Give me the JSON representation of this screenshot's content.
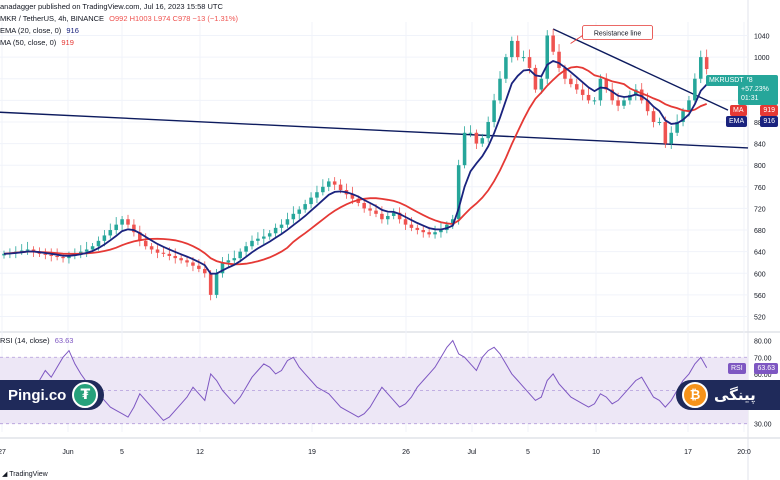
{
  "header": {
    "published": "anadagger published on TradingView.com, Jul 16, 2023 15:58 UTC",
    "symbol": "MKR / TetherUS, 4h, BINANCE",
    "ohlc": "O992 H1003 L974 C978 −13 (−1.31%)",
    "ema_label": "EMA (20, close, 0)",
    "ema_value": "916",
    "sma_label": "MA (50, close, 0)",
    "sma_value": "919",
    "rsi_label": "RSI (14, close)",
    "rsi_value": "63.63"
  },
  "badges": {
    "ticker": "MKRUSDT",
    "last_price": "978",
    "change": "+57.23%",
    "countdown": "01:31",
    "ma_tag": "MA",
    "ma_value": "919",
    "ema_tag": "EMA",
    "ema_value": "916",
    "rsi_tag": "RSI",
    "rsi_value": "63.63"
  },
  "annotation": "Resistance line",
  "branding": {
    "left": "Pingi.co",
    "right": "پینگی",
    "tether_symbol": "₮",
    "btc_symbol": "₿",
    "tradingview": "TradingView"
  },
  "colors": {
    "up": "#26a69a",
    "down": "#ef5350",
    "ema": "#1a237e",
    "sma": "#e53935",
    "rsi": "#7e57c2",
    "trendline": "#0d1b5e",
    "rsi_band": "#ede7f6",
    "badge_green": "#26a69a",
    "badge_blue": "#1a237e",
    "badge_red": "#e53935",
    "badge_purple": "#7e57c2"
  },
  "chart_data": [
    {
      "type": "candlestick",
      "title": "MKR / TetherUS, 4h, BINANCE",
      "x_ticks": [
        "27",
        "Jun",
        "5",
        "12",
        "19",
        "26",
        "Jul",
        "5",
        "10",
        "17",
        "20:0"
      ],
      "y_ticks": [
        520,
        560,
        600,
        640,
        680,
        720,
        760,
        800,
        840,
        880,
        920,
        960,
        1000,
        1040
      ],
      "ylim": [
        495,
        1065
      ],
      "series": [
        {
          "name": "MKRUSDT",
          "close": [
            636,
            638,
            640,
            642,
            644,
            640,
            636,
            634,
            632,
            630,
            628,
            632,
            636,
            640,
            644,
            650,
            660,
            670,
            680,
            690,
            700,
            690,
            676,
            660,
            650,
            644,
            638,
            636,
            632,
            628,
            624,
            620,
            614,
            608,
            600,
            560,
            600,
            620,
            624,
            628,
            640,
            650,
            660,
            664,
            668,
            674,
            684,
            690,
            700,
            710,
            718,
            728,
            740,
            750,
            760,
            770,
            764,
            754,
            746,
            738,
            730,
            720,
            716,
            710,
            700,
            706,
            712,
            700,
            690,
            684,
            680,
            676,
            672,
            676,
            680,
            690,
            700,
            800,
            860,
            860,
            840,
            850,
            880,
            920,
            960,
            1000,
            1030,
            1000,
            1000,
            980,
            940,
            960,
            1040,
            1010,
            980,
            960,
            950,
            940,
            930,
            920,
            920,
            960,
            940,
            920,
            910,
            920,
            930,
            940,
            920,
            900,
            880,
            880,
            840,
            860,
            880,
            900,
            920,
            960,
            1000,
            978
          ]
        },
        {
          "name": "EMA (20, close, 0)",
          "last": 916
        },
        {
          "name": "MA (50, close, 0)",
          "last": 919
        }
      ],
      "annotations": [
        "Resistance line"
      ]
    },
    {
      "type": "line",
      "title": "RSI (14, close)",
      "y_ticks": [
        30,
        40,
        50,
        60,
        70,
        80
      ],
      "ylim": [
        25,
        84
      ],
      "band": [
        30,
        70
      ],
      "series": [
        {
          "name": "RSI (14, close)",
          "values": [
            50,
            52,
            54,
            48,
            46,
            50,
            56,
            62,
            58,
            64,
            70,
            74,
            66,
            60,
            55,
            50,
            48,
            44,
            40,
            38,
            36,
            34,
            40,
            48,
            44,
            40,
            36,
            32,
            34,
            38,
            42,
            46,
            52,
            48,
            44,
            60,
            56,
            50,
            46,
            42,
            46,
            52,
            58,
            62,
            66,
            64,
            60,
            62,
            68,
            70,
            64,
            60,
            56,
            52,
            50,
            48,
            44,
            40,
            38,
            36,
            34,
            36,
            40,
            46,
            52,
            48,
            44,
            40,
            42,
            46,
            52,
            56,
            60,
            64,
            70,
            76,
            80,
            72,
            70,
            66,
            62,
            70,
            74,
            76,
            72,
            66,
            60,
            56,
            52,
            48,
            44,
            46,
            56,
            60,
            54,
            50,
            46,
            44,
            42,
            40,
            42,
            48,
            46,
            42,
            44,
            48,
            52,
            56,
            58,
            52,
            46,
            44,
            40,
            44,
            50,
            56,
            60,
            66,
            70,
            63.63
          ]
        }
      ]
    }
  ]
}
